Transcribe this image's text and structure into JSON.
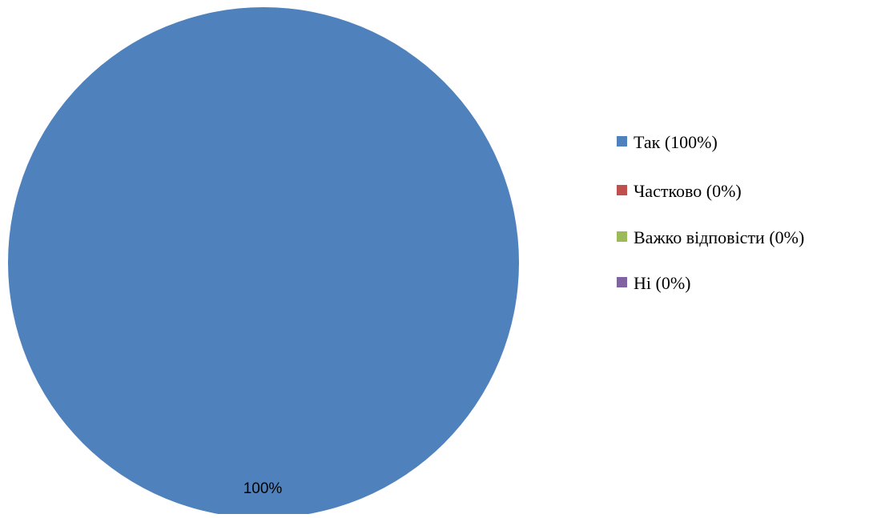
{
  "chart_data": {
    "type": "pie",
    "categories": [
      "Так (100%)",
      "Частково (0%)",
      "Важко відповісти (0%)",
      "Ні (0%)"
    ],
    "values": [
      100,
      0,
      0,
      0
    ],
    "colors": [
      "#4f81bd",
      "#c0504d",
      "#9bbb59",
      "#8064a2"
    ],
    "data_labels": [
      "100%"
    ],
    "legend_placement": "right",
    "title": ""
  }
}
